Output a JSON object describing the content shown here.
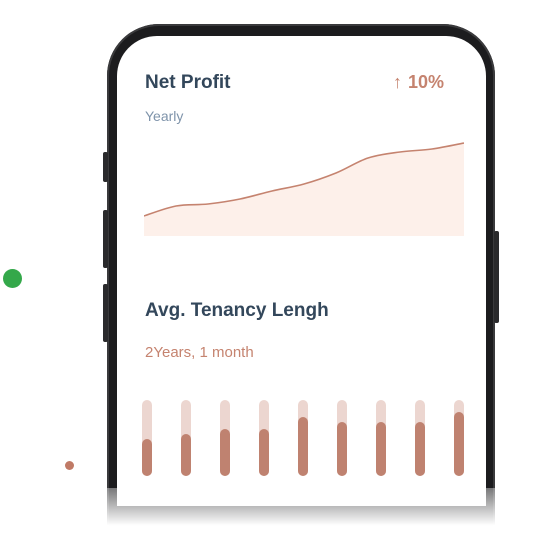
{
  "net_profit": {
    "title": "Net Profit",
    "change_arrow": "↑",
    "change": "10%",
    "period": "Yearly",
    "chart_data": {
      "type": "area",
      "x": [
        0,
        1,
        2,
        3,
        4,
        5,
        6,
        7,
        8,
        9,
        10
      ],
      "values": [
        20,
        30,
        32,
        37,
        45,
        52,
        63,
        78,
        84,
        87,
        93
      ],
      "ylim": [
        0,
        100
      ],
      "color": "#c5836f",
      "fill": "#fdf0ea"
    }
  },
  "tenancy": {
    "title": "Avg. Tenancy Lengh",
    "value": "2Years, 1 month",
    "chart_data": {
      "type": "bar",
      "values": [
        0.49,
        0.55,
        0.62,
        0.62,
        0.78,
        0.71,
        0.71,
        0.71,
        0.84
      ],
      "track_color": "#ecd6d0",
      "bar_color": "#bf8270"
    }
  },
  "colors": {
    "accent": "#c5836f",
    "green_dot": "#34a84a",
    "brown_dot": "#c07a66",
    "phone_frame": "#1c1c1e"
  }
}
